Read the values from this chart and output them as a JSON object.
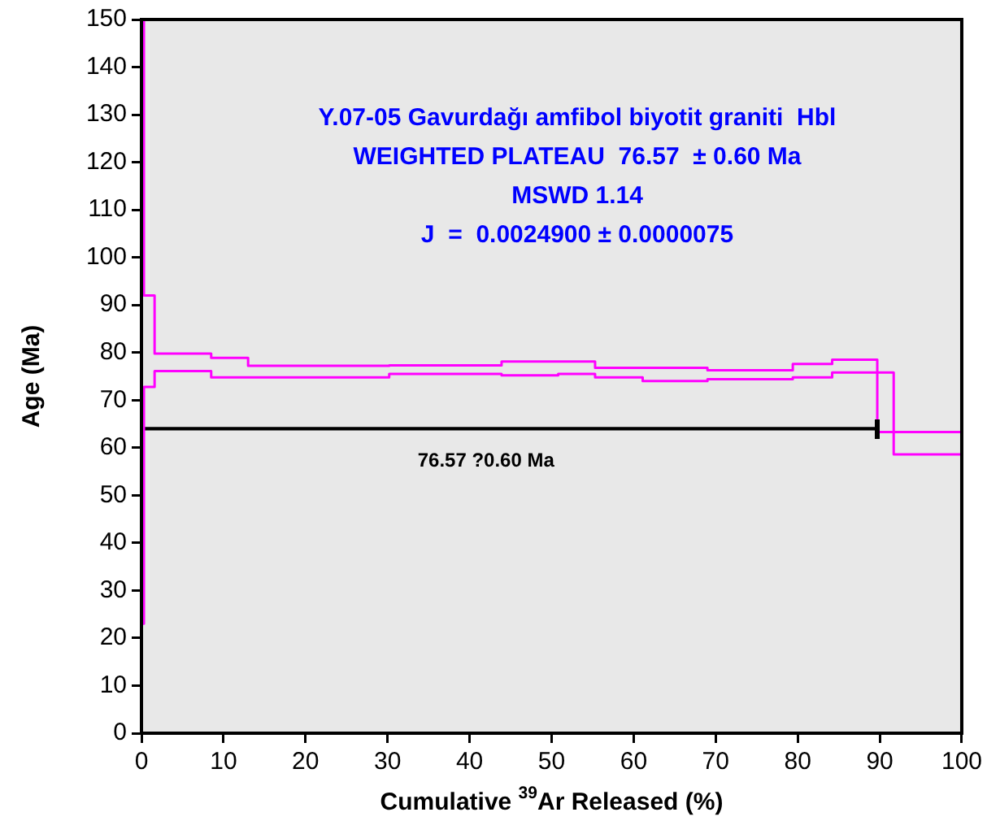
{
  "chart_data": {
    "type": "step",
    "xlabel": "Cumulative $^{39}$Ar Released (%)",
    "ylabel": "Age (Ma)",
    "x": [
      0,
      0.3,
      1.6,
      8.5,
      13,
      30.2,
      43.9,
      50.8,
      55.3,
      61.1,
      69,
      79.4,
      84.2,
      89.7,
      91.7,
      100
    ],
    "series": [
      {
        "color": "#ff00ff",
        "values": [
          150,
          92,
          79.8,
          78.9,
          77.2,
          77.3,
          78.1,
          78.1,
          76.8,
          76.8,
          76.3,
          77.6,
          78.5,
          75.8,
          63.3,
          63.3
        ]
      },
      {
        "color": "#ff00ff",
        "values": [
          23,
          72.8,
          76.1,
          74.8,
          74.8,
          75.5,
          75.2,
          75.5,
          74.8,
          74.0,
          74.4,
          74.8,
          75.8,
          63.3,
          58.6,
          58.6
        ]
      },
      {
        "type": "line",
        "color": "#000000",
        "x": [
          0,
          89.7
        ],
        "values": [
          64,
          64
        ]
      }
    ],
    "annotations": [
      "Y.07-05 Gavurdağı amfibol biyotit graniti  Hbl",
      "WEIGHTED PLATEAU  76.57  ± 0.60 Ma",
      "MSWD 1.14",
      "J  =  0.0024900 ± 0.0000075",
      {
        "text": "76.57 ?0.60 Ma",
        "x": 42,
        "y": 64
      }
    ],
    "xlim": [
      0,
      100
    ],
    "xticks": [
      0,
      10,
      20,
      30,
      40,
      50,
      60,
      70,
      80,
      90,
      100
    ],
    "ylim": [
      0,
      150
    ],
    "yticks": [
      0,
      10,
      20,
      30,
      40,
      50,
      60,
      70,
      80,
      90,
      100,
      110,
      120,
      130,
      140,
      150
    ],
    "grid": false,
    "legend": false,
    "marker": "none"
  }
}
